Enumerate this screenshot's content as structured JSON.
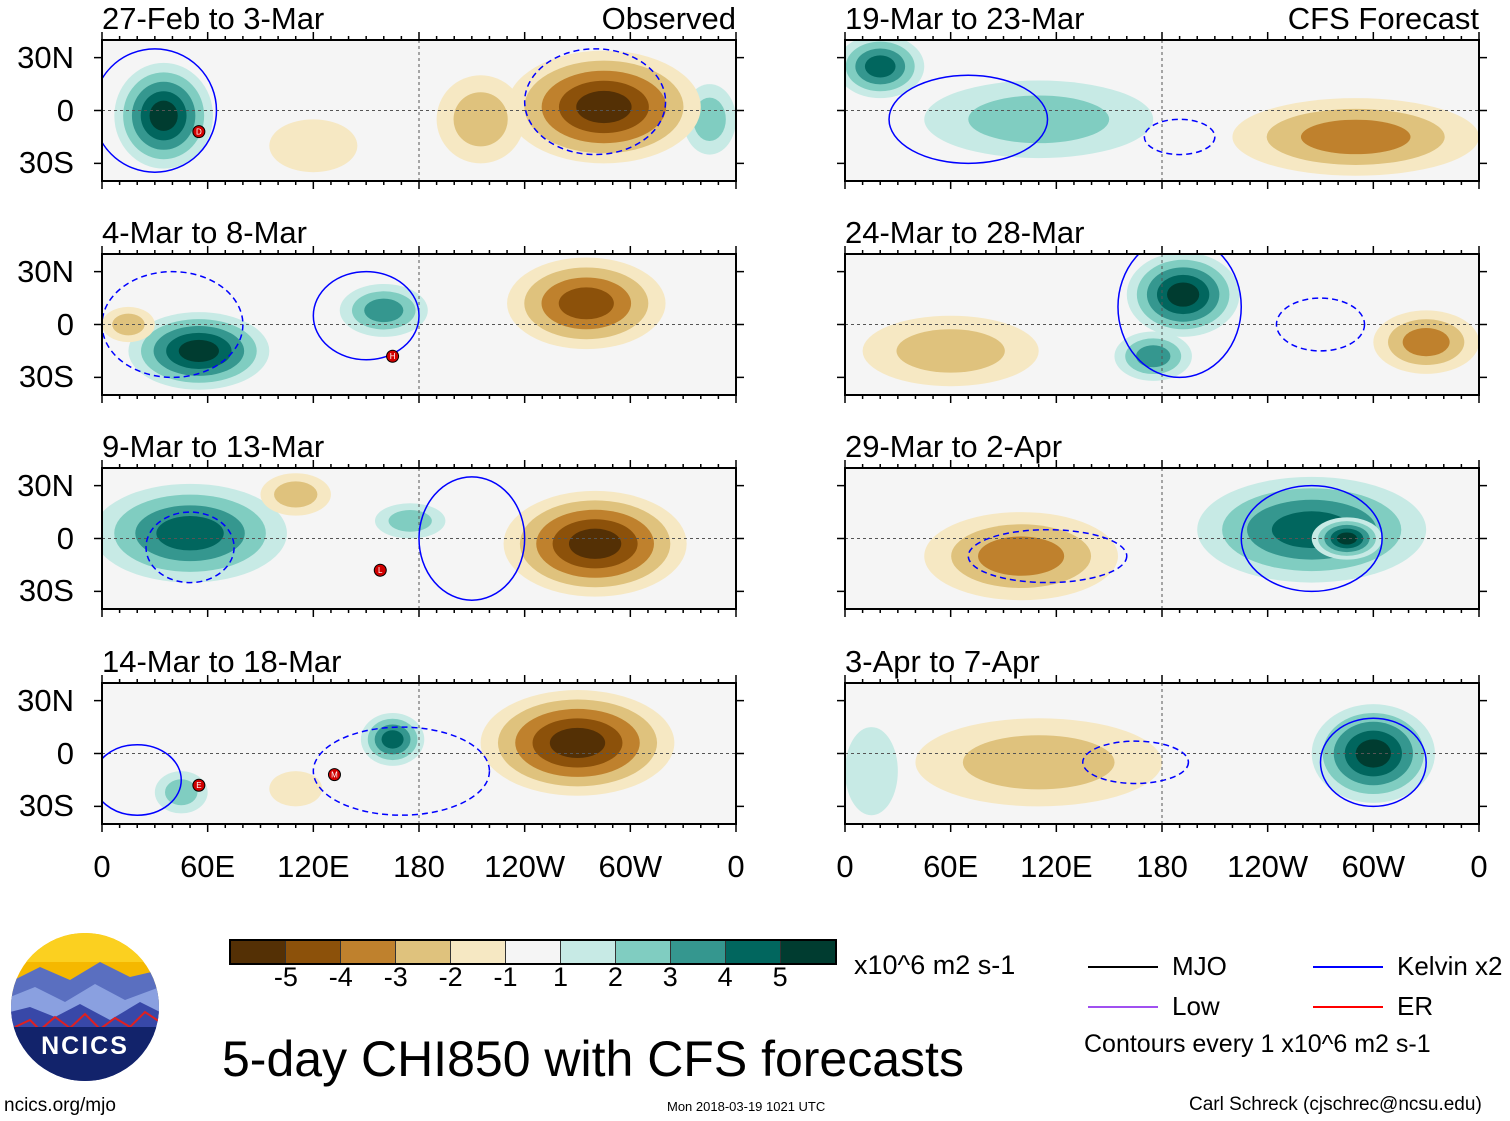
{
  "title": "5-day CHI850 with CFS forecasts",
  "footer": {
    "site": "ncics.org/mjo",
    "timestamp": "Mon 2018-03-19 1021 UTC",
    "author": "Carl Schreck (cjschrec@ncsu.edu)",
    "logo_text": "NCICS"
  },
  "colorbar": {
    "unit": "x10^6 m2 s-1",
    "colors": [
      "#543005",
      "#8c510a",
      "#bf812d",
      "#dfc27d",
      "#f6e8c3",
      "#f5f5f5",
      "#c7eae5",
      "#80cdc1",
      "#35978f",
      "#01665e",
      "#003c30"
    ],
    "labels": [
      "-5",
      "-4",
      "-3",
      "-2",
      "-1",
      "1",
      "2",
      "3",
      "4",
      "5"
    ]
  },
  "legend": {
    "items": [
      {
        "label": "MJO",
        "color": "#000000"
      },
      {
        "label": "Kelvin x2",
        "color": "#0000ff"
      },
      {
        "label": "Low",
        "color": "#a050f0"
      },
      {
        "label": "ER",
        "color": "#ff0000"
      }
    ],
    "note": "Contours every 1 x10^6 m2 s-1"
  },
  "chart_data": {
    "type": "heatmap",
    "variable": "5-day CHI850 anomaly",
    "x_ticks": [
      "0",
      "60E",
      "120E",
      "180",
      "120W",
      "60W",
      "0"
    ],
    "y_ticks": [
      "30N",
      "0",
      "30S"
    ],
    "lon_range": [
      0,
      360
    ],
    "lat_range": [
      -40,
      40
    ],
    "panels": [
      {
        "title": "27-Feb to 3-Mar",
        "label": "Observed",
        "blobs": [
          {
            "lon": 35,
            "lat": -3,
            "rx": 28,
            "ry": 30,
            "v": 5
          },
          {
            "lon": 345,
            "lat": -5,
            "rx": 15,
            "ry": 20,
            "v": 2
          },
          {
            "lon": 285,
            "lat": 2,
            "rx": 55,
            "ry": 32,
            "v": -5
          },
          {
            "lon": 215,
            "lat": -5,
            "rx": 25,
            "ry": 25,
            "v": -2
          },
          {
            "lon": 120,
            "lat": -20,
            "rx": 25,
            "ry": 15,
            "v": -1
          }
        ],
        "contours": [
          {
            "lon": 30,
            "lat": 0,
            "rx": 35,
            "ry": 35,
            "d": false
          },
          {
            "lon": 280,
            "lat": 5,
            "rx": 40,
            "ry": 30,
            "d": true
          }
        ],
        "storms": [
          {
            "lon": 55,
            "lat": -12,
            "letter": "D"
          }
        ]
      },
      {
        "title": "4-Mar to 8-Mar",
        "label": "",
        "blobs": [
          {
            "lon": 55,
            "lat": -15,
            "rx": 40,
            "ry": 22,
            "v": 5
          },
          {
            "lon": 160,
            "lat": 8,
            "rx": 25,
            "ry": 15,
            "v": 3
          },
          {
            "lon": 275,
            "lat": 12,
            "rx": 45,
            "ry": 26,
            "v": -4
          },
          {
            "lon": 15,
            "lat": 0,
            "rx": 15,
            "ry": 10,
            "v": -2
          }
        ],
        "contours": [
          {
            "lon": 150,
            "lat": 5,
            "rx": 30,
            "ry": 25,
            "d": false
          },
          {
            "lon": 40,
            "lat": 0,
            "rx": 40,
            "ry": 30,
            "d": true
          }
        ],
        "storms": [
          {
            "lon": 165,
            "lat": -18,
            "letter": "H"
          }
        ]
      },
      {
        "title": "9-Mar to 13-Mar",
        "label": "",
        "blobs": [
          {
            "lon": 50,
            "lat": 3,
            "rx": 55,
            "ry": 28,
            "v": 4
          },
          {
            "lon": 280,
            "lat": -3,
            "rx": 52,
            "ry": 30,
            "v": -5
          },
          {
            "lon": 110,
            "lat": 25,
            "rx": 20,
            "ry": 12,
            "v": -2
          },
          {
            "lon": 175,
            "lat": 10,
            "rx": 20,
            "ry": 10,
            "v": 2
          }
        ],
        "contours": [
          {
            "lon": 210,
            "lat": 0,
            "rx": 30,
            "ry": 35,
            "d": false
          },
          {
            "lon": 50,
            "lat": -5,
            "rx": 25,
            "ry": 20,
            "d": true
          }
        ],
        "storms": [
          {
            "lon": 158,
            "lat": -18,
            "letter": "L"
          }
        ]
      },
      {
        "title": "14-Mar to 18-Mar",
        "label": "",
        "blobs": [
          {
            "lon": 165,
            "lat": 8,
            "rx": 18,
            "ry": 15,
            "v": 4
          },
          {
            "lon": 45,
            "lat": -22,
            "rx": 15,
            "ry": 12,
            "v": 2
          },
          {
            "lon": 270,
            "lat": 6,
            "rx": 55,
            "ry": 30,
            "v": -5
          },
          {
            "lon": 110,
            "lat": -20,
            "rx": 15,
            "ry": 10,
            "v": -1
          }
        ],
        "contours": [
          {
            "lon": 20,
            "lat": -15,
            "rx": 25,
            "ry": 20,
            "d": false
          },
          {
            "lon": 170,
            "lat": -10,
            "rx": 50,
            "ry": 25,
            "d": true
          }
        ],
        "storms": [
          {
            "lon": 55,
            "lat": -18,
            "letter": "E"
          },
          {
            "lon": 132,
            "lat": -12,
            "letter": "M"
          }
        ]
      },
      {
        "title": "19-Mar to 23-Mar",
        "label": "CFS Forecast",
        "blobs": [
          {
            "lon": 20,
            "lat": 25,
            "rx": 25,
            "ry": 18,
            "v": 4
          },
          {
            "lon": 110,
            "lat": -5,
            "rx": 65,
            "ry": 22,
            "v": 2
          },
          {
            "lon": 290,
            "lat": -15,
            "rx": 70,
            "ry": 22,
            "v": -3
          }
        ],
        "contours": [
          {
            "lon": 70,
            "lat": -5,
            "rx": 45,
            "ry": 25,
            "d": false
          },
          {
            "lon": 190,
            "lat": -15,
            "rx": 20,
            "ry": 10,
            "d": true
          }
        ],
        "storms": []
      },
      {
        "title": "24-Mar to 28-Mar",
        "label": "",
        "blobs": [
          {
            "lon": 192,
            "lat": 17,
            "rx": 32,
            "ry": 24,
            "v": 5
          },
          {
            "lon": 175,
            "lat": -18,
            "rx": 22,
            "ry": 14,
            "v": 3
          },
          {
            "lon": 330,
            "lat": -10,
            "rx": 30,
            "ry": 18,
            "v": -3
          },
          {
            "lon": 60,
            "lat": -15,
            "rx": 50,
            "ry": 20,
            "v": -2
          }
        ],
        "contours": [
          {
            "lon": 190,
            "lat": 10,
            "rx": 35,
            "ry": 40,
            "d": false
          },
          {
            "lon": 270,
            "lat": 0,
            "rx": 25,
            "ry": 15,
            "d": true
          }
        ],
        "storms": []
      },
      {
        "title": "29-Mar to 2-Apr",
        "label": "",
        "blobs": [
          {
            "lon": 100,
            "lat": -10,
            "rx": 55,
            "ry": 25,
            "v": -3
          },
          {
            "lon": 265,
            "lat": 5,
            "rx": 65,
            "ry": 30,
            "v": 4
          },
          {
            "lon": 285,
            "lat": 0,
            "rx": 20,
            "ry": 12,
            "v": 5
          }
        ],
        "contours": [
          {
            "lon": 265,
            "lat": 0,
            "rx": 40,
            "ry": 30,
            "d": false
          },
          {
            "lon": 115,
            "lat": -10,
            "rx": 45,
            "ry": 15,
            "d": true
          }
        ],
        "storms": []
      },
      {
        "title": "3-Apr to 7-Apr",
        "label": "",
        "blobs": [
          {
            "lon": 110,
            "lat": -5,
            "rx": 70,
            "ry": 25,
            "v": -2
          },
          {
            "lon": 300,
            "lat": 0,
            "rx": 35,
            "ry": 28,
            "v": 5
          },
          {
            "lon": 15,
            "lat": -10,
            "rx": 15,
            "ry": 25,
            "v": 1
          }
        ],
        "contours": [
          {
            "lon": 300,
            "lat": -5,
            "rx": 30,
            "ry": 25,
            "d": false
          },
          {
            "lon": 165,
            "lat": -5,
            "rx": 30,
            "ry": 12,
            "d": true
          }
        ],
        "storms": []
      }
    ]
  }
}
